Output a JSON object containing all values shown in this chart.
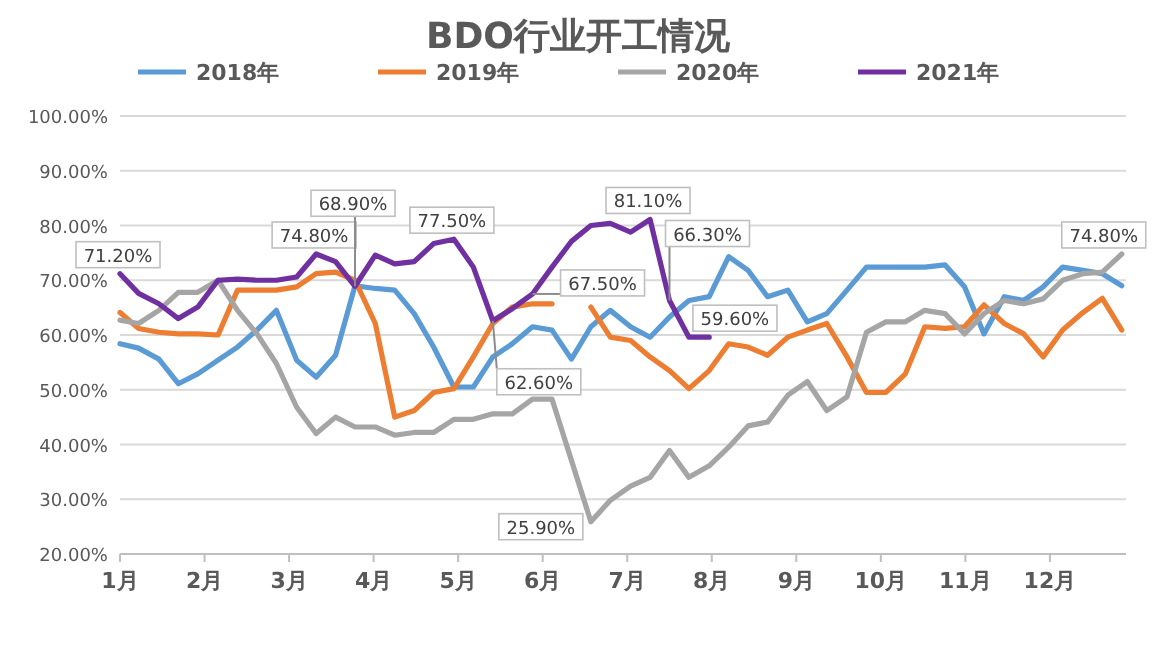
{
  "chart_data": {
    "type": "line",
    "title": "BDO行业开工情况",
    "x": [
      1.0,
      1.22,
      1.46,
      1.69,
      1.92,
      2.16,
      2.39,
      2.62,
      2.85,
      3.09,
      3.32,
      3.55,
      3.78,
      4.02,
      4.25,
      4.48,
      4.71,
      4.95,
      5.18,
      5.41,
      5.64,
      5.88,
      6.11,
      6.34,
      6.57,
      6.8,
      7.04,
      7.27,
      7.5,
      7.73,
      7.97,
      8.2,
      8.43,
      8.66,
      8.9,
      9.13,
      9.36,
      9.6,
      9.83,
      10.06,
      10.29,
      10.52,
      10.76,
      10.99,
      11.22,
      11.46,
      11.69,
      11.92,
      12.15,
      12.39,
      12.62,
      12.85
    ],
    "series": [
      {
        "name": "2018年",
        "color": "#5b9bd5",
        "values": [
          58.4,
          57.6,
          55.6,
          51.1,
          52.9,
          55.4,
          57.8,
          60.9,
          64.5,
          55.4,
          52.3,
          56.3,
          69.0,
          68.5,
          68.2,
          63.9,
          57.8,
          50.5,
          50.5,
          56.0,
          58.4,
          61.5,
          60.9,
          55.6,
          61.5,
          64.5,
          61.5,
          59.6,
          63.3,
          66.3,
          67.0,
          74.3,
          71.8,
          67.0,
          68.2,
          62.4,
          63.9,
          68.2,
          72.4,
          72.4,
          72.4,
          72.4,
          72.8,
          68.8,
          60.2,
          67.0,
          66.3,
          68.8,
          72.4,
          71.8,
          71.2,
          69.0
        ]
      },
      {
        "name": "2019年",
        "color": "#ed7d31",
        "values": [
          64.1,
          61.2,
          60.5,
          60.2,
          60.2,
          60.0,
          68.2,
          68.2,
          68.2,
          68.8,
          71.2,
          71.5,
          70.0,
          62.1,
          45.0,
          46.2,
          49.5,
          50.2,
          56.0,
          62.1,
          65.1,
          65.7,
          65.7,
          null,
          65.1,
          59.6,
          59.0,
          56.0,
          53.5,
          50.2,
          53.5,
          58.4,
          57.8,
          56.3,
          59.6,
          60.9,
          62.1,
          56.0,
          49.5,
          49.5,
          52.9,
          61.5,
          61.2,
          61.5,
          65.5,
          62.1,
          60.2,
          56.0,
          60.9,
          64.1,
          66.7,
          60.9
        ]
      },
      {
        "name": "2020年",
        "color": "#a5a5a5",
        "values": [
          62.7,
          62.1,
          64.5,
          67.8,
          67.8,
          70.0,
          64.5,
          60.2,
          54.8,
          46.8,
          42.0,
          45.0,
          43.2,
          43.2,
          41.7,
          42.2,
          42.2,
          44.6,
          44.6,
          45.6,
          45.6,
          48.3,
          48.3,
          37.1,
          25.9,
          29.8,
          32.4,
          34.0,
          38.9,
          34.0,
          36.1,
          39.5,
          43.4,
          44.1,
          49.0,
          51.5,
          46.2,
          48.7,
          60.5,
          62.4,
          62.4,
          64.5,
          63.9,
          60.2,
          63.9,
          66.3,
          65.7,
          66.6,
          70.0,
          71.2,
          71.5,
          74.8
        ]
      },
      {
        "name": "2021年",
        "color": "#7030a0",
        "values": [
          71.2,
          67.6,
          65.7,
          63.0,
          65.1,
          70.0,
          70.2,
          70.0,
          70.0,
          70.6,
          74.8,
          73.4,
          68.9,
          74.6,
          73.0,
          73.4,
          76.7,
          77.5,
          72.4,
          62.6,
          64.8,
          67.5,
          72.4,
          77.1,
          80.0,
          80.4,
          78.8,
          81.1,
          66.3,
          59.6,
          59.6,
          null,
          null,
          null,
          null,
          null,
          null,
          null,
          null,
          null,
          null,
          null,
          null,
          null,
          null,
          null,
          null,
          null,
          null,
          null,
          null,
          null
        ]
      }
    ],
    "xlim": [
      1,
      12.9
    ],
    "xticks": [
      {
        "value": 1,
        "label": "1月"
      },
      {
        "value": 2,
        "label": "2月"
      },
      {
        "value": 3,
        "label": "3月"
      },
      {
        "value": 4,
        "label": "4月"
      },
      {
        "value": 5,
        "label": "5月"
      },
      {
        "value": 6,
        "label": "6月"
      },
      {
        "value": 7,
        "label": "7月"
      },
      {
        "value": 8,
        "label": "8月"
      },
      {
        "value": 9,
        "label": "9月"
      },
      {
        "value": 10,
        "label": "10月"
      },
      {
        "value": 11,
        "label": "11月"
      },
      {
        "value": 12,
        "label": "12月"
      }
    ],
    "ylim": [
      20,
      100
    ],
    "yticks": [
      {
        "value": 20,
        "label": "20.00%"
      },
      {
        "value": 30,
        "label": "30.00%"
      },
      {
        "value": 40,
        "label": "40.00%"
      },
      {
        "value": 50,
        "label": "50.00%"
      },
      {
        "value": 60,
        "label": "60.00%"
      },
      {
        "value": 70,
        "label": "70.00%"
      },
      {
        "value": 80,
        "label": "80.00%"
      },
      {
        "value": 90,
        "label": "90.00%"
      },
      {
        "value": 100,
        "label": "100.00%"
      }
    ],
    "grid": "y",
    "legend": "top",
    "marker": "none",
    "annotations": [
      {
        "text": "71.20%",
        "x": 1.0,
        "y": 71.2
      },
      {
        "text": "74.80%",
        "x": 3.32,
        "y": 74.8
      },
      {
        "text": "68.90%",
        "x": 3.78,
        "y": 68.9
      },
      {
        "text": "77.50%",
        "x": 4.95,
        "y": 77.5
      },
      {
        "text": "62.60%",
        "x": 5.41,
        "y": 62.6
      },
      {
        "text": "67.50%",
        "x": 5.88,
        "y": 67.5
      },
      {
        "text": "25.90%",
        "x": 6.57,
        "y": 25.9
      },
      {
        "text": "81.10%",
        "x": 7.27,
        "y": 81.1
      },
      {
        "text": "66.30%",
        "x": 7.5,
        "y": 66.3
      },
      {
        "text": "59.60%",
        "x": 7.73,
        "y": 59.6
      },
      {
        "text": "74.80%",
        "x": 12.85,
        "y": 74.8
      }
    ]
  }
}
